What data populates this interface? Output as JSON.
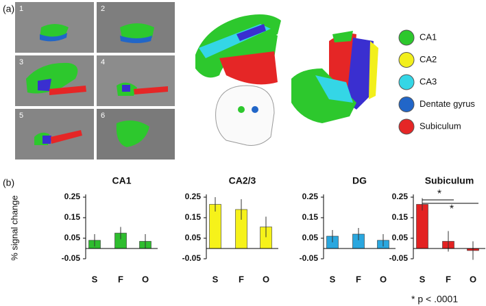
{
  "panel_a": {
    "label": "(a)",
    "slice_labels": [
      "1",
      "2",
      "3",
      "4",
      "5",
      "6"
    ],
    "legend": [
      {
        "name": "CA1",
        "color": "#2dc82d"
      },
      {
        "name": "CA2",
        "color": "#f2ef1c"
      },
      {
        "name": "CA3",
        "color": "#34d6e6"
      },
      {
        "name": "Dentate gyrus",
        "color": "#2166c8"
      },
      {
        "name": "Subiculum",
        "color": "#e52626"
      }
    ]
  },
  "panel_b": {
    "label": "(b)",
    "footnote": "* p < .0001"
  },
  "chart_data": [
    {
      "type": "bar",
      "title": "CA1",
      "ylabel": "% signal change",
      "categories": [
        "S",
        "F",
        "O"
      ],
      "values": [
        0.04,
        0.075,
        0.035
      ],
      "errors": [
        0.03,
        0.03,
        0.035
      ],
      "color": "#2ebd2e",
      "ylim": [
        -0.05,
        0.25
      ],
      "yticks": [
        -0.05,
        0.05,
        0.15,
        0.25
      ]
    },
    {
      "type": "bar",
      "title": "CA2/3",
      "categories": [
        "S",
        "F",
        "O"
      ],
      "values": [
        0.215,
        0.19,
        0.105
      ],
      "errors": [
        0.035,
        0.05,
        0.05
      ],
      "color": "#f6f21a",
      "ylim": [
        -0.05,
        0.25
      ],
      "yticks": [
        -0.05,
        0.05,
        0.15,
        0.25
      ]
    },
    {
      "type": "bar",
      "title": "DG",
      "categories": [
        "S",
        "F",
        "O"
      ],
      "values": [
        0.06,
        0.07,
        0.04
      ],
      "errors": [
        0.03,
        0.03,
        0.03
      ],
      "color": "#2aa7df",
      "ylim": [
        -0.05,
        0.25
      ],
      "yticks": [
        -0.05,
        0.05,
        0.15,
        0.25
      ]
    },
    {
      "type": "bar",
      "title": "Subiculum",
      "categories": [
        "S",
        "F",
        "O"
      ],
      "values": [
        0.215,
        0.035,
        -0.01
      ],
      "errors": [
        0.03,
        0.05,
        0.045
      ],
      "color": "#e32222",
      "ylim": [
        -0.05,
        0.25
      ],
      "yticks": [
        -0.05,
        0.05,
        0.15,
        0.25
      ],
      "annotations": [
        "*",
        "*"
      ]
    }
  ]
}
